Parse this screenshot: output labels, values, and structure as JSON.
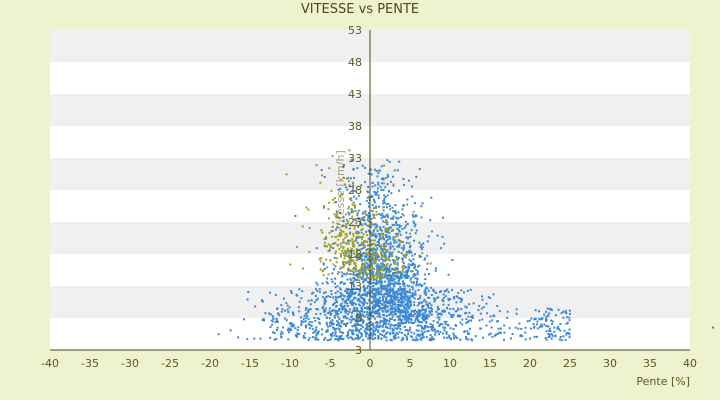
{
  "chart_data": {
    "type": "scatter",
    "title": "VITESSE vs PENTE",
    "xlabel": "Pente [%]",
    "ylabel": "Vitesse [km/h]",
    "xlim": [
      -40,
      40
    ],
    "ylim": [
      3,
      53
    ],
    "xticks": [
      -40,
      -35,
      -30,
      -25,
      -20,
      -15,
      -10,
      -5,
      0,
      5,
      10,
      15,
      20,
      25,
      30,
      35,
      40
    ],
    "yticks": [
      3,
      8,
      13,
      18,
      23,
      28,
      33,
      38,
      43,
      48,
      53
    ],
    "grid": "horizontal alternating bands",
    "series": [
      {
        "color": "#3a88d4",
        "description_values": "dense cloud: slope -22..25 %, speed 4..33 km/h",
        "count": 2600
      },
      {
        "color": "#a0a020",
        "description_values": "sparser cloud: slope -15..10 %, speed 10..38 km/h",
        "count": 380
      }
    ]
  },
  "colors": {
    "background": "#eef2cf",
    "plot_band_light": "#ffffff",
    "plot_band_dark": "#f0f0f0",
    "axis": "#4a4a1a"
  }
}
